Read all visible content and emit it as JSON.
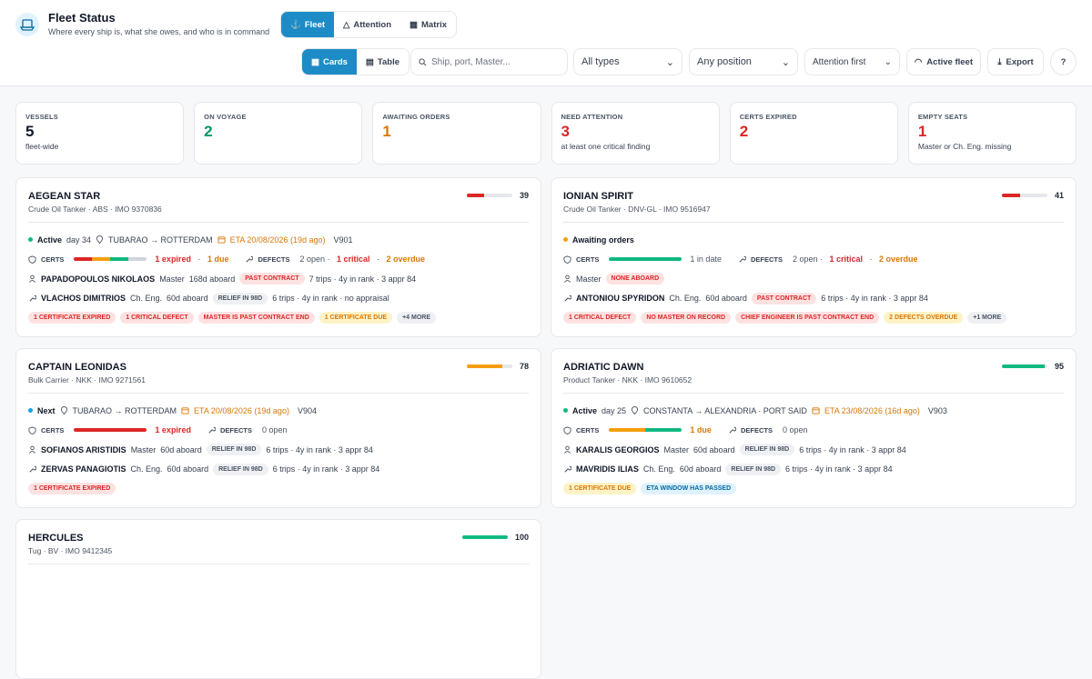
{
  "header": {
    "title": "Fleet Status",
    "subtitle": "Where every ship is, what she owes, and who is in command",
    "tabs": [
      "Fleet",
      "Attention",
      "Matrix"
    ],
    "views": [
      "Cards",
      "Table"
    ],
    "search": "Ship, port, Master...",
    "filters": [
      "All types",
      "Any position",
      "Attention first"
    ],
    "buttons": [
      "Active fleet",
      "Export"
    ]
  },
  "labels": {
    "certs": "CERTS",
    "defects": "DEFECTS"
  },
  "stats": [
    {
      "label": "VESSELS",
      "value": "5",
      "note": "fleet-wide",
      "color": "#111827"
    },
    {
      "label": "ON VOYAGE",
      "value": "2",
      "color": "#059669"
    },
    {
      "label": "AWAITING ORDERS",
      "value": "1",
      "color": "#d97706"
    },
    {
      "label": "NEED ATTENTION",
      "value": "3",
      "note": "at least one critical finding",
      "color": "#dc2626"
    },
    {
      "label": "CERTS EXPIRED",
      "value": "2",
      "color": "#dc2626"
    },
    {
      "label": "EMPTY SEATS",
      "value": "1",
      "note": "Master or Ch. Eng. missing",
      "color": "#dc2626"
    }
  ],
  "ships": [
    {
      "name": "AEGEAN STAR",
      "subtitle": "Crude Oil Tanker · ABS · IMO 9370836",
      "score": 39,
      "score_color": "#dc2626",
      "status": {
        "state": "Active",
        "dot": "#10b981",
        "day": "day 34",
        "route": "TUBARAO → ROTTERDAM",
        "eta": "ETA 20/08/2026 (19d ago)",
        "voyage": "V901"
      },
      "cert_bar": [
        "#dc2626",
        "#f59e0b",
        "#10b981",
        "#d1d5db"
      ],
      "certs": [
        {
          "text": "1 expired",
          "tone": "red"
        },
        {
          "text": " · ",
          "tone": "gray"
        },
        {
          "text": "1 due",
          "tone": "orange"
        }
      ],
      "defects": [
        {
          "text": "2 open · ",
          "tone": "gray"
        },
        {
          "text": "1 critical",
          "tone": "red"
        },
        {
          "text": " · ",
          "tone": "gray"
        },
        {
          "text": "2 overdue",
          "tone": "orange"
        }
      ],
      "crew": [
        {
          "icon": "person",
          "name": "PAPADOPOULOS NIKOLAOS",
          "role": "Master",
          "aboard": "168d aboard",
          "badge": "PAST CONTRACT",
          "tone": "red",
          "stats": "7 trips · 4y in rank · 3 appr 84"
        },
        {
          "icon": "wrench",
          "name": "VLACHOS DIMITRIOS",
          "role": "Ch. Eng.",
          "aboard": "60d aboard",
          "badge": "RELIEF IN 98D",
          "tone": "gray",
          "stats": "6 trips · 4y in rank · no appraisal"
        }
      ],
      "tags": [
        {
          "text": "1 CERTIFICATE EXPIRED",
          "tone": "red"
        },
        {
          "text": "1 CRITICAL DEFECT",
          "tone": "red"
        },
        {
          "text": "MASTER IS PAST CONTRACT END",
          "tone": "red"
        },
        {
          "text": "1 CERTIFICATE DUE",
          "tone": "orange"
        },
        {
          "text": "+4 MORE",
          "tone": "gray"
        }
      ]
    },
    {
      "name": "IONIAN SPIRIT",
      "subtitle": "Crude Oil Tanker · DNV-GL · IMO 9516947",
      "score": 41,
      "score_color": "#dc2626",
      "status": {
        "state": "Awaiting orders",
        "dot": "#f59e0b"
      },
      "cert_bar": [
        "#10b981"
      ],
      "certs": [
        {
          "text": "1 in date",
          "tone": "gray"
        }
      ],
      "defects": [
        {
          "text": "2 open · ",
          "tone": "gray"
        },
        {
          "text": "1 critical",
          "tone": "red"
        },
        {
          "text": " · ",
          "tone": "gray"
        },
        {
          "text": "2 overdue",
          "tone": "orange"
        }
      ],
      "crew": [
        {
          "icon": "person",
          "role": "Master",
          "badge": "NONE ABOARD",
          "tone": "red"
        },
        {
          "icon": "wrench",
          "name": "ANTONIOU SPYRIDON",
          "role": "Ch. Eng.",
          "aboard": "60d aboard",
          "badge": "PAST CONTRACT",
          "tone": "red",
          "stats": "6 trips · 4y in rank · 3 appr 84"
        }
      ],
      "tags": [
        {
          "text": "1 CRITICAL DEFECT",
          "tone": "red"
        },
        {
          "text": "NO MASTER ON RECORD",
          "tone": "red"
        },
        {
          "text": "CHIEF ENGINEER IS PAST CONTRACT END",
          "tone": "red"
        },
        {
          "text": "2 DEFECTS OVERDUE",
          "tone": "orange"
        },
        {
          "text": "+1 MORE",
          "tone": "gray"
        }
      ]
    },
    {
      "name": "CAPTAIN LEONIDAS",
      "subtitle": "Bulk Carrier · NKK · IMO 9271561",
      "score": 78,
      "score_color": "#f59e0b",
      "status": {
        "state": "Next",
        "dot": "#0ea5e9",
        "route": "TUBARAO → ROTTERDAM",
        "eta": "ETA 20/08/2026 (19d ago)",
        "voyage": "V904"
      },
      "cert_bar": [
        "#dc2626"
      ],
      "certs": [
        {
          "text": "1 expired",
          "tone": "red"
        }
      ],
      "defects": [
        {
          "text": "0 open",
          "tone": "gray"
        }
      ],
      "crew": [
        {
          "icon": "person",
          "name": "SOFIANOS ARISTIDIS",
          "role": "Master",
          "aboard": "60d aboard",
          "badge": "RELIEF IN 98D",
          "tone": "gray",
          "stats": "6 trips · 4y in rank · 3 appr 84"
        },
        {
          "icon": "wrench",
          "name": "ZERVAS PANAGIOTIS",
          "role": "Ch. Eng.",
          "aboard": "60d aboard",
          "badge": "RELIEF IN 98D",
          "tone": "gray",
          "stats": "6 trips · 4y in rank · 3 appr 84"
        }
      ],
      "tags": [
        {
          "text": "1 CERTIFICATE EXPIRED",
          "tone": "red"
        }
      ]
    },
    {
      "name": "ADRIATIC DAWN",
      "subtitle": "Product Tanker · NKK · IMO 9610652",
      "score": 95,
      "score_color": "#10b981",
      "status": {
        "state": "Active",
        "dot": "#10b981",
        "day": "day 25",
        "route": "CONSTANTA → ALEXANDRIA · PORT SAID",
        "eta": "ETA 23/08/2026 (16d ago)",
        "voyage": "V903"
      },
      "cert_bar": [
        "#f59e0b",
        "#10b981"
      ],
      "certs": [
        {
          "text": "1 due",
          "tone": "orange"
        }
      ],
      "defects": [
        {
          "text": "0 open",
          "tone": "gray"
        }
      ],
      "crew": [
        {
          "icon": "person",
          "name": "KARALIS GEORGIOS",
          "role": "Master",
          "aboard": "60d aboard",
          "badge": "RELIEF IN 98D",
          "tone": "gray",
          "stats": "6 trips · 4y in rank · 3 appr 84"
        },
        {
          "icon": "wrench",
          "name": "MAVRIDIS ILIAS",
          "role": "Ch. Eng.",
          "aboard": "60d aboard",
          "badge": "RELIEF IN 98D",
          "tone": "gray",
          "stats": "6 trips · 4y in rank · 3 appr 84"
        }
      ],
      "tags": [
        {
          "text": "1 CERTIFICATE DUE",
          "tone": "orange"
        },
        {
          "text": "ETA WINDOW HAS PASSED",
          "tone": "blue"
        }
      ]
    },
    {
      "name": "HERCULES",
      "subtitle": "Tug · BV · IMO 9412345",
      "score": 100,
      "score_color": "#10b981"
    }
  ]
}
